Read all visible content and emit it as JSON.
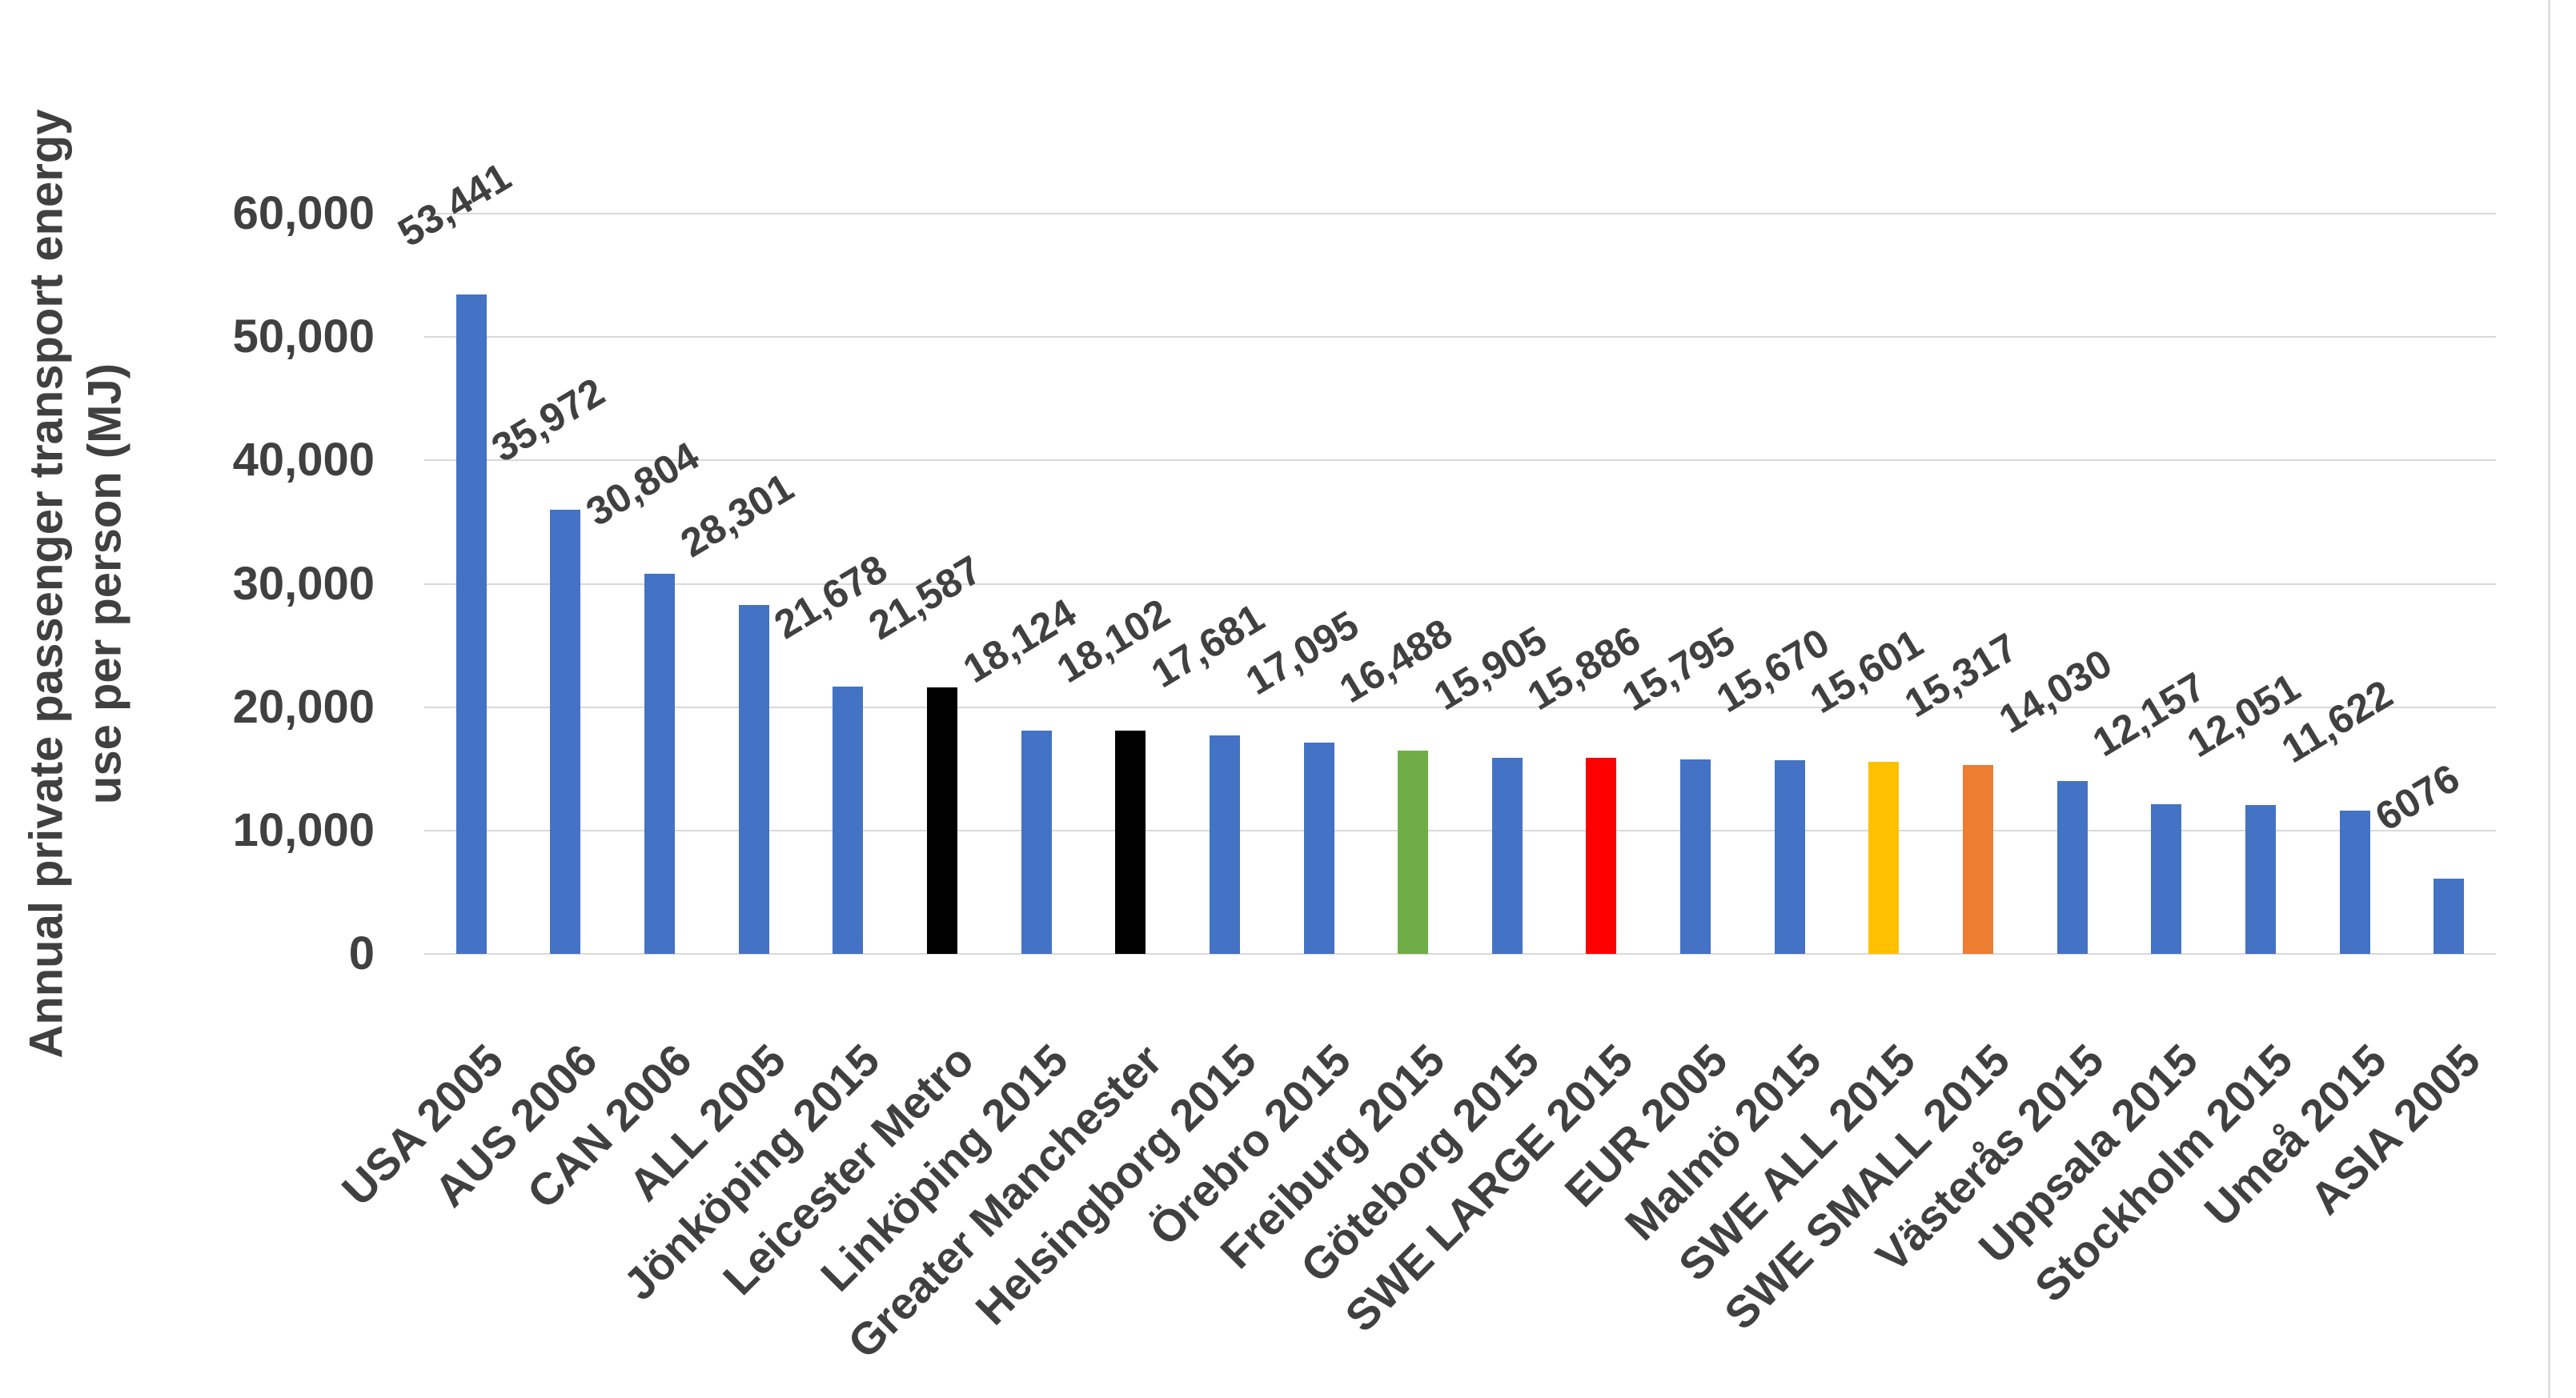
{
  "chart_data": {
    "type": "bar",
    "title": "",
    "ylabel_lines": [
      "Annual private passenger transport energy",
      "use per person (MJ)"
    ],
    "ylabel": "Annual private passenger transport energy use per person (MJ)",
    "xlabel": "",
    "ylim": [
      0,
      60000
    ],
    "grid": true,
    "legend": "none",
    "ytick_values": [
      0,
      10000,
      20000,
      30000,
      40000,
      50000,
      60000
    ],
    "ytick_labels": [
      "0",
      "10,000",
      "20,000",
      "30,000",
      "40,000",
      "50,000",
      "60,000"
    ],
    "categories": [
      "USA 2005",
      "AUS 2006",
      "CAN 2006",
      "ALL 2005",
      "Jönköping 2015",
      "Leicester Metro",
      "Linköping 2015",
      "Greater Manchester",
      "Helsingborg 2015",
      "Örebro 2015",
      "Freiburg 2015",
      "Göteborg 2015",
      "SWE LARGE 2015",
      "EUR 2005",
      "Malmö 2015",
      "SWE ALL 2015",
      "SWE SMALL 2015",
      "Västerås 2015",
      "Uppsala 2015",
      "Stockholm 2015",
      "Umeå 2015",
      "ASIA 2005"
    ],
    "values": [
      53441,
      35972,
      30804,
      28301,
      21678,
      21587,
      18124,
      18102,
      17681,
      17095,
      16488,
      15905,
      15886,
      15795,
      15670,
      15601,
      15317,
      14030,
      12157,
      12051,
      11622,
      6076
    ],
    "value_labels": [
      "53,441",
      "35,972",
      "30,804",
      "28,301",
      "21,678",
      "21,587",
      "18,124",
      "18,102",
      "17,681",
      "17,095",
      "16,488",
      "15,905",
      "15,886",
      "15,795",
      "15,670",
      "15,601",
      "15,317",
      "14,030",
      "12,157",
      "12,051",
      "11,622",
      "6076"
    ],
    "bar_color_names": [
      "blue",
      "blue",
      "blue",
      "blue",
      "blue",
      "black",
      "blue",
      "black",
      "blue",
      "blue",
      "green",
      "blue",
      "red",
      "blue",
      "blue",
      "yellow",
      "orange",
      "blue",
      "blue",
      "blue",
      "blue",
      "blue"
    ],
    "palette": {
      "blue": "#4472C4",
      "black": "#000000",
      "green": "#70AD47",
      "red": "#FF0000",
      "yellow": "#FFC000",
      "orange": "#ED7D31"
    },
    "text_color": "#404040",
    "gridline_color": "#D9D9D9"
  }
}
